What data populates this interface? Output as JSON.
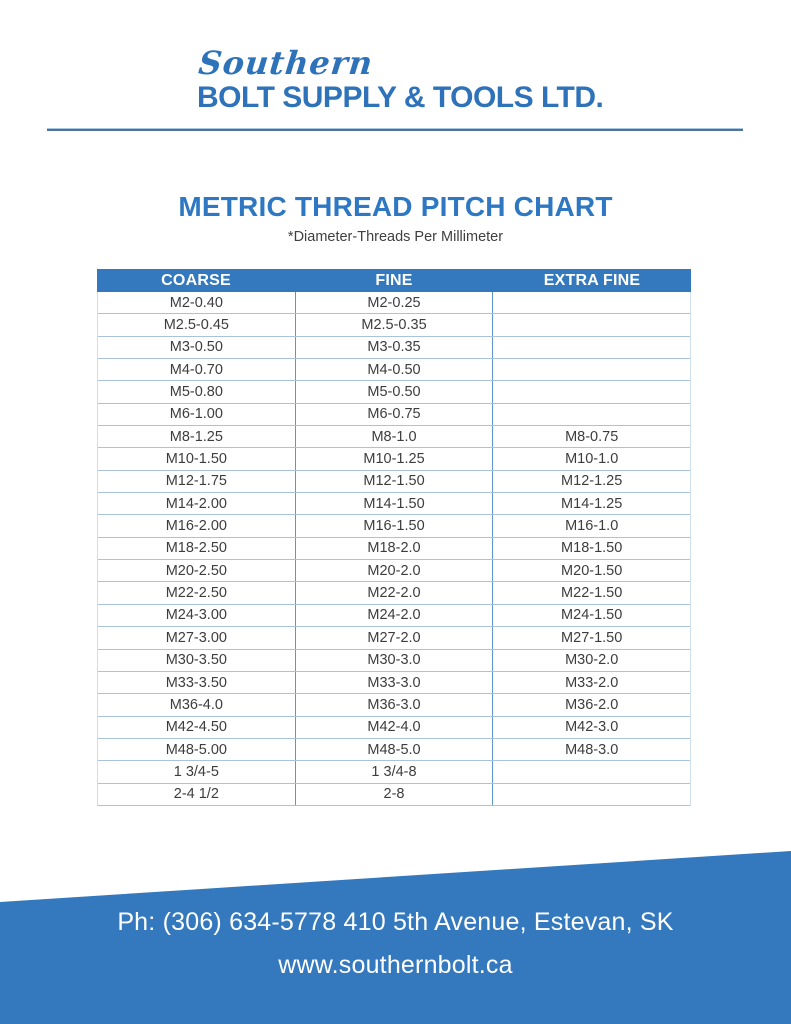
{
  "logo": {
    "script": "Southern",
    "name": "BOLT SUPPLY & TOOLS LTD."
  },
  "title": "METRIC THREAD PITCH CHART",
  "subtitle": "*Diameter-Threads Per Millimeter",
  "colors": {
    "brand_blue": "#2e72b9",
    "title_blue": "#2e77c2",
    "table_header_blue": "#3478bd",
    "footer_blue": "#3478bd",
    "row_separator": "#a9c2dd",
    "column_divider": "#5e96ca",
    "body_text": "#3d3d3d"
  },
  "chart_data": {
    "type": "table",
    "title": "METRIC THREAD PITCH CHART",
    "subtitle": "*Diameter-Threads Per Millimeter",
    "columns": [
      "COARSE",
      "FINE",
      "EXTRA FINE"
    ],
    "rows": [
      [
        "M2-0.40",
        "M2-0.25",
        ""
      ],
      [
        "M2.5-0.45",
        "M2.5-0.35",
        ""
      ],
      [
        "M3-0.50",
        "M3-0.35",
        ""
      ],
      [
        "M4-0.70",
        "M4-0.50",
        ""
      ],
      [
        "M5-0.80",
        "M5-0.50",
        ""
      ],
      [
        "M6-1.00",
        "M6-0.75",
        ""
      ],
      [
        "M8-1.25",
        "M8-1.0",
        "M8-0.75"
      ],
      [
        "M10-1.50",
        "M10-1.25",
        "M10-1.0"
      ],
      [
        "M12-1.75",
        "M12-1.50",
        "M12-1.25"
      ],
      [
        "M14-2.00",
        "M14-1.50",
        "M14-1.25"
      ],
      [
        "M16-2.00",
        "M16-1.50",
        "M16-1.0"
      ],
      [
        "M18-2.50",
        "M18-2.0",
        "M18-1.50"
      ],
      [
        "M20-2.50",
        "M20-2.0",
        "M20-1.50"
      ],
      [
        "M22-2.50",
        "M22-2.0",
        "M22-1.50"
      ],
      [
        "M24-3.00",
        "M24-2.0",
        "M24-1.50"
      ],
      [
        "M27-3.00",
        "M27-2.0",
        "M27-1.50"
      ],
      [
        "M30-3.50",
        "M30-3.0",
        "M30-2.0"
      ],
      [
        "M33-3.50",
        "M33-3.0",
        "M33-2.0"
      ],
      [
        "M36-4.0",
        "M36-3.0",
        "M36-2.0"
      ],
      [
        "M42-4.50",
        "M42-4.0",
        "M42-3.0"
      ],
      [
        "M48-5.00",
        "M48-5.0",
        "M48-3.0"
      ],
      [
        "1 3/4-5",
        "1 3/4-8",
        ""
      ],
      [
        "2-4 1/2",
        "2-8",
        ""
      ]
    ]
  },
  "footer": {
    "line1": "Ph: (306) 634-5778 410 5th Avenue, Estevan, SK",
    "line2": "www.southernbolt.ca"
  }
}
